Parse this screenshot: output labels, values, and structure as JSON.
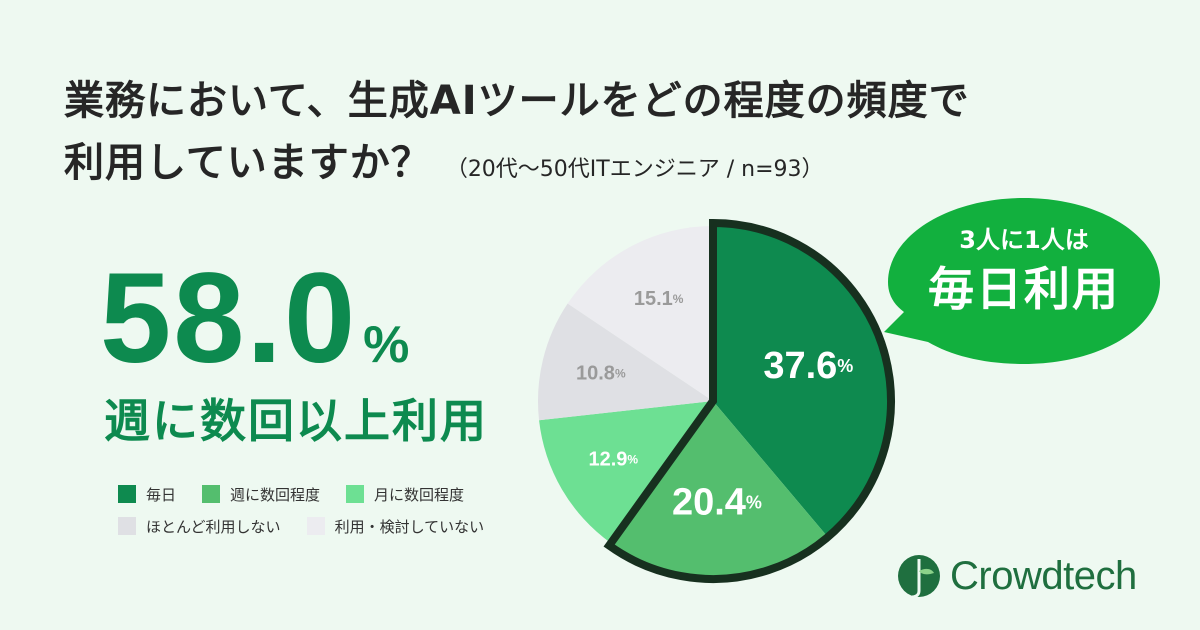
{
  "title": {
    "line1": "業務において、生成AIツールをどの程度の頻度で",
    "line2": "利用していますか？",
    "note": "（20代〜50代ITエンジニア / n=93）"
  },
  "highlight": {
    "value": "58.0",
    "unit": "%",
    "label": "週に数回以上利用"
  },
  "callout": {
    "line1": "3人に1人は",
    "line2": "毎日利用"
  },
  "logo": {
    "name": "Crowdtech",
    "icon": "crowdtech-leaf-icon"
  },
  "chart_data": {
    "type": "pie",
    "title": "",
    "series": [
      {
        "name": "毎日",
        "value": 37.6,
        "label": "37.6",
        "color": "#0e8a4f",
        "label_color": "#ffffff"
      },
      {
        "name": "週に数回程度",
        "value": 20.4,
        "label": "20.4",
        "color": "#54be6e",
        "label_color": "#ffffff"
      },
      {
        "name": "月に数回程度",
        "value": 12.9,
        "label": "12.9",
        "color": "#6de093",
        "label_color": "#ffffff"
      },
      {
        "name": "ほとんど利用しない",
        "value": 10.8,
        "label": "10.8",
        "color": "#dfe0e4",
        "label_color": "#9a9a9a"
      },
      {
        "name": "利用・検討していない",
        "value": 15.1,
        "label": "15.1",
        "color": "#ececf0",
        "label_color": "#9a9a9a"
      }
    ],
    "unit": "%",
    "highlighted_series": [
      "毎日",
      "週に数回程度"
    ],
    "outline_color": "#17301f",
    "legend_position": "bottom-left"
  }
}
